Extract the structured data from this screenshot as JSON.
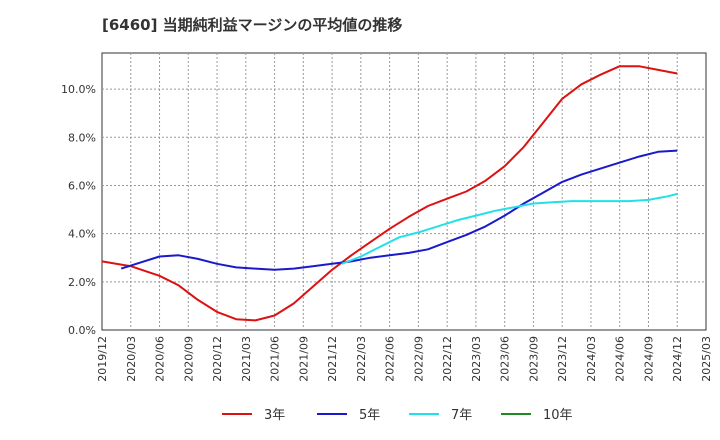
{
  "chart_data": {
    "type": "line",
    "title": "[6460]  当期純利益マージンの平均値の推移",
    "xlabel": "",
    "ylabel": "",
    "ylim": [
      0,
      11.5
    ],
    "y_ticks": [
      0,
      2,
      4,
      6,
      8,
      10
    ],
    "y_tick_labels": [
      "0.0%",
      "2.0%",
      "4.0%",
      "6.0%",
      "8.0%",
      "10.0%"
    ],
    "x_tick_labels": [
      "2019/12",
      "2020/03",
      "2020/06",
      "2020/09",
      "2020/12",
      "2021/03",
      "2021/06",
      "2021/09",
      "2021/12",
      "2022/03",
      "2022/06",
      "2022/09",
      "2022/12",
      "2023/03",
      "2023/06",
      "2023/09",
      "2023/12",
      "2024/03",
      "2024/06",
      "2024/09",
      "2024/12",
      "2025/03"
    ],
    "grid": true,
    "legend_position": "bottom",
    "series": [
      {
        "name": "3年",
        "color": "#dd1111",
        "points": [
          [
            "2019/12",
            2.85
          ],
          [
            "2020/03",
            2.65
          ],
          [
            "2020/06",
            2.25
          ],
          [
            "2020/08",
            1.85
          ],
          [
            "2020/10",
            1.25
          ],
          [
            "2020/12",
            0.75
          ],
          [
            "2021/02",
            0.45
          ],
          [
            "2021/04",
            0.4
          ],
          [
            "2021/06",
            0.6
          ],
          [
            "2021/08",
            1.1
          ],
          [
            "2021/10",
            1.8
          ],
          [
            "2021/12",
            2.5
          ],
          [
            "2022/02",
            3.1
          ],
          [
            "2022/04",
            3.65
          ],
          [
            "2022/06",
            4.2
          ],
          [
            "2022/08",
            4.7
          ],
          [
            "2022/10",
            5.15
          ],
          [
            "2022/12",
            5.45
          ],
          [
            "2023/02",
            5.75
          ],
          [
            "2023/04",
            6.2
          ],
          [
            "2023/06",
            6.8
          ],
          [
            "2023/08",
            7.6
          ],
          [
            "2023/10",
            8.6
          ],
          [
            "2023/12",
            9.6
          ],
          [
            "2024/02",
            10.2
          ],
          [
            "2024/04",
            10.6
          ],
          [
            "2024/06",
            10.95
          ],
          [
            "2024/08",
            10.95
          ],
          [
            "2024/10",
            10.8
          ],
          [
            "2024/12",
            10.65
          ]
        ]
      },
      {
        "name": "5年",
        "color": "#1a1acc",
        "points": [
          [
            "2020/02",
            2.55
          ],
          [
            "2020/04",
            2.8
          ],
          [
            "2020/06",
            3.05
          ],
          [
            "2020/08",
            3.1
          ],
          [
            "2020/10",
            2.95
          ],
          [
            "2020/12",
            2.75
          ],
          [
            "2021/02",
            2.6
          ],
          [
            "2021/04",
            2.55
          ],
          [
            "2021/06",
            2.5
          ],
          [
            "2021/08",
            2.55
          ],
          [
            "2021/10",
            2.65
          ],
          [
            "2021/12",
            2.75
          ],
          [
            "2022/02",
            2.85
          ],
          [
            "2022/04",
            3.0
          ],
          [
            "2022/06",
            3.1
          ],
          [
            "2022/08",
            3.2
          ],
          [
            "2022/10",
            3.35
          ],
          [
            "2022/12",
            3.65
          ],
          [
            "2023/02",
            3.95
          ],
          [
            "2023/04",
            4.3
          ],
          [
            "2023/06",
            4.75
          ],
          [
            "2023/08",
            5.25
          ],
          [
            "2023/10",
            5.7
          ],
          [
            "2023/12",
            6.15
          ],
          [
            "2024/02",
            6.45
          ],
          [
            "2024/04",
            6.7
          ],
          [
            "2024/06",
            6.95
          ],
          [
            "2024/08",
            7.2
          ],
          [
            "2024/10",
            7.4
          ],
          [
            "2024/12",
            7.45
          ]
        ]
      },
      {
        "name": "7年",
        "color": "#22e0e8",
        "points": [
          [
            "2022/01",
            2.75
          ],
          [
            "2022/03",
            3.05
          ],
          [
            "2022/05",
            3.45
          ],
          [
            "2022/07",
            3.85
          ],
          [
            "2022/09",
            4.05
          ],
          [
            "2022/11",
            4.3
          ],
          [
            "2023/01",
            4.55
          ],
          [
            "2023/03",
            4.75
          ],
          [
            "2023/05",
            4.95
          ],
          [
            "2023/07",
            5.1
          ],
          [
            "2023/09",
            5.25
          ],
          [
            "2023/11",
            5.3
          ],
          [
            "2024/01",
            5.35
          ],
          [
            "2024/03",
            5.35
          ],
          [
            "2024/05",
            5.35
          ],
          [
            "2024/07",
            5.35
          ],
          [
            "2024/09",
            5.4
          ],
          [
            "2024/11",
            5.55
          ],
          [
            "2024/12",
            5.65
          ]
        ]
      },
      {
        "name": "10年",
        "color": "#228822",
        "points": []
      }
    ]
  }
}
